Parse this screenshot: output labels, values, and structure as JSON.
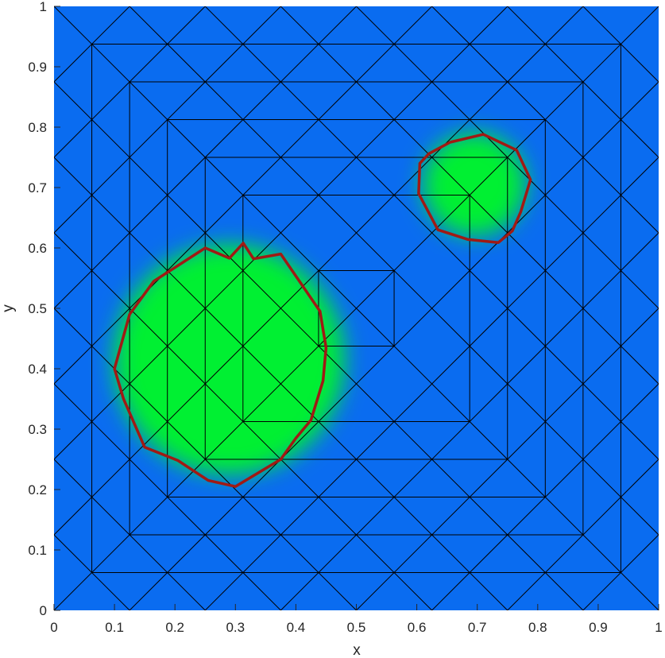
{
  "chart_data": {
    "type": "heatmap",
    "title": "",
    "xlabel": "x",
    "ylabel": "y",
    "xlim": [
      0,
      1
    ],
    "ylim": [
      0,
      1
    ],
    "xticks": [
      "0",
      "0.1",
      "0.2",
      "0.3",
      "0.4",
      "0.5",
      "0.6",
      "0.7",
      "0.8",
      "0.9",
      "1"
    ],
    "yticks": [
      "0",
      "0.1",
      "0.2",
      "0.3",
      "0.4",
      "0.5",
      "0.6",
      "0.7",
      "0.8",
      "0.9",
      "1"
    ],
    "grid": false,
    "colors": {
      "background": "#0a6cf0",
      "high": "#00f032",
      "mesh": "#000000",
      "contour": "#a01a14"
    },
    "mesh": {
      "square_bounds": [
        0.0625,
        0.125,
        0.1875,
        0.25,
        0.3125,
        0.4375
      ],
      "outer_edge_spacing": 0.125
    },
    "field": [
      {
        "center": [
          0.29,
          0.415
        ],
        "radius": 0.19
      },
      {
        "center": [
          0.695,
          0.705
        ],
        "radius": 0.085
      }
    ],
    "contours": [
      {
        "points": [
          [
            0.1,
            0.4
          ],
          [
            0.125,
            0.49
          ],
          [
            0.165,
            0.545
          ],
          [
            0.25,
            0.6
          ],
          [
            0.29,
            0.583
          ],
          [
            0.313,
            0.608
          ],
          [
            0.33,
            0.582
          ],
          [
            0.375,
            0.59
          ],
          [
            0.44,
            0.495
          ],
          [
            0.45,
            0.435
          ],
          [
            0.445,
            0.38
          ],
          [
            0.425,
            0.315
          ],
          [
            0.4,
            0.285
          ],
          [
            0.375,
            0.25
          ],
          [
            0.3,
            0.205
          ],
          [
            0.255,
            0.215
          ],
          [
            0.205,
            0.248
          ],
          [
            0.15,
            0.27
          ],
          [
            0.115,
            0.35
          ]
        ]
      },
      {
        "points": [
          [
            0.62,
            0.756
          ],
          [
            0.655,
            0.775
          ],
          [
            0.71,
            0.788
          ],
          [
            0.765,
            0.762
          ],
          [
            0.788,
            0.713
          ],
          [
            0.772,
            0.66
          ],
          [
            0.758,
            0.628
          ],
          [
            0.735,
            0.609
          ],
          [
            0.685,
            0.614
          ],
          [
            0.635,
            0.63
          ],
          [
            0.603,
            0.69
          ],
          [
            0.605,
            0.74
          ]
        ]
      }
    ]
  }
}
